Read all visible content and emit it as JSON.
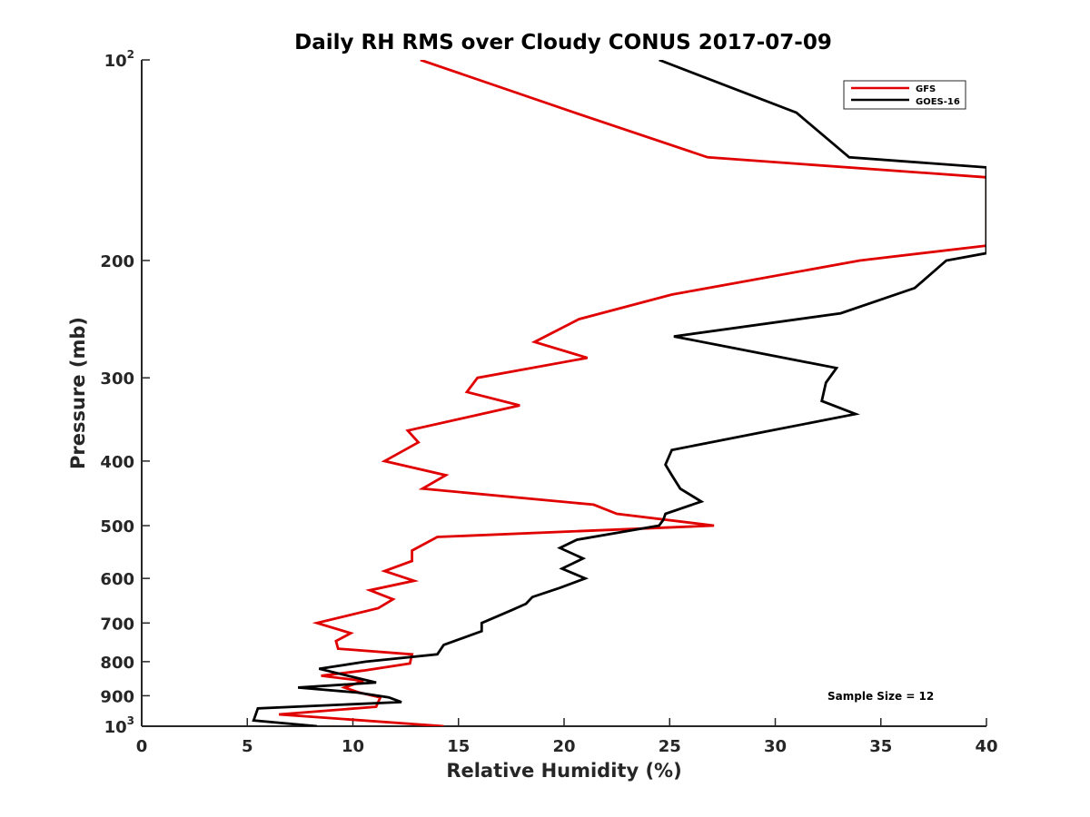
{
  "chart_data": {
    "type": "line",
    "title": "Daily RH RMS over Cloudy CONUS 2017-07-09",
    "xlabel": "Relative Humidity (%)",
    "ylabel": "Pressure (mb)",
    "xlim": [
      0,
      40
    ],
    "ylim": [
      100,
      1000
    ],
    "yscale": "log",
    "yreverse": true,
    "xticks": [
      0,
      5,
      10,
      15,
      20,
      25,
      30,
      35,
      40
    ],
    "xtick_labels": [
      "0",
      "5",
      "10",
      "15",
      "20",
      "25",
      "30",
      "35",
      "40"
    ],
    "yticks": [
      100,
      200,
      300,
      400,
      500,
      600,
      700,
      800,
      900,
      1000
    ],
    "ytick_labels": [
      {
        "base": "10",
        "sup": "2"
      },
      {
        "base": "200"
      },
      {
        "base": "300"
      },
      {
        "base": "400"
      },
      {
        "base": "500"
      },
      {
        "base": "600"
      },
      {
        "base": "700"
      },
      {
        "base": "800"
      },
      {
        "base": "900"
      },
      {
        "base": "10",
        "sup": "3"
      }
    ],
    "grid": false,
    "legend_position": "top-right",
    "annotation": "Sample Size = 12",
    "series": [
      {
        "name": "GFS",
        "color": "#e00000",
        "x": [
          13.2,
          20.5,
          26.8,
          40.0,
          40.0,
          34.0,
          25.1,
          20.7,
          18.6,
          21.1,
          15.9,
          15.4,
          17.9,
          12.6,
          13.1,
          11.5,
          14.4,
          13.3,
          21.4,
          22.5,
          27.1,
          14.0,
          12.8,
          12.8,
          11.5,
          12.9,
          10.8,
          11.9,
          11.2,
          8.3,
          9.9,
          9.2,
          9.3,
          12.8,
          12.7,
          10.5,
          8.5,
          10.5,
          9.6,
          10.3,
          11.3,
          11.1,
          6.5,
          14.3
        ],
        "y": [
          100,
          120,
          140,
          150,
          190,
          200,
          225,
          245,
          265,
          280,
          300,
          315,
          330,
          360,
          375,
          400,
          420,
          440,
          465,
          480,
          500,
          520,
          545,
          565,
          585,
          605,
          625,
          645,
          665,
          700,
          725,
          745,
          765,
          780,
          805,
          825,
          840,
          855,
          875,
          890,
          905,
          935,
          960,
          1000
        ]
      },
      {
        "name": "GOES-16",
        "color": "#000000",
        "x": [
          24.5,
          31.0,
          33.5,
          40.0,
          40.0,
          38.1,
          36.6,
          33.1,
          25.2,
          32.9,
          32.4,
          32.2,
          33.8,
          29.8,
          25.1,
          24.8,
          25.1,
          25.5,
          26.5,
          24.8,
          24.7,
          24.5,
          20.6,
          19.8,
          20.9,
          19.9,
          21.0,
          19.8,
          18.5,
          18.2,
          17.5,
          16.1,
          16.1,
          14.3,
          14.0,
          10.6,
          8.4,
          11.1,
          7.4,
          10.2,
          11.7,
          12.3,
          5.5,
          5.3,
          8.3
        ],
        "y": [
          100,
          120,
          140,
          145,
          195,
          200,
          220,
          240,
          260,
          290,
          305,
          325,
          340,
          360,
          385,
          405,
          420,
          440,
          460,
          480,
          490,
          500,
          525,
          540,
          560,
          580,
          600,
          620,
          640,
          655,
          670,
          700,
          720,
          755,
          780,
          800,
          820,
          860,
          875,
          890,
          905,
          920,
          940,
          980,
          1000
        ]
      }
    ]
  }
}
